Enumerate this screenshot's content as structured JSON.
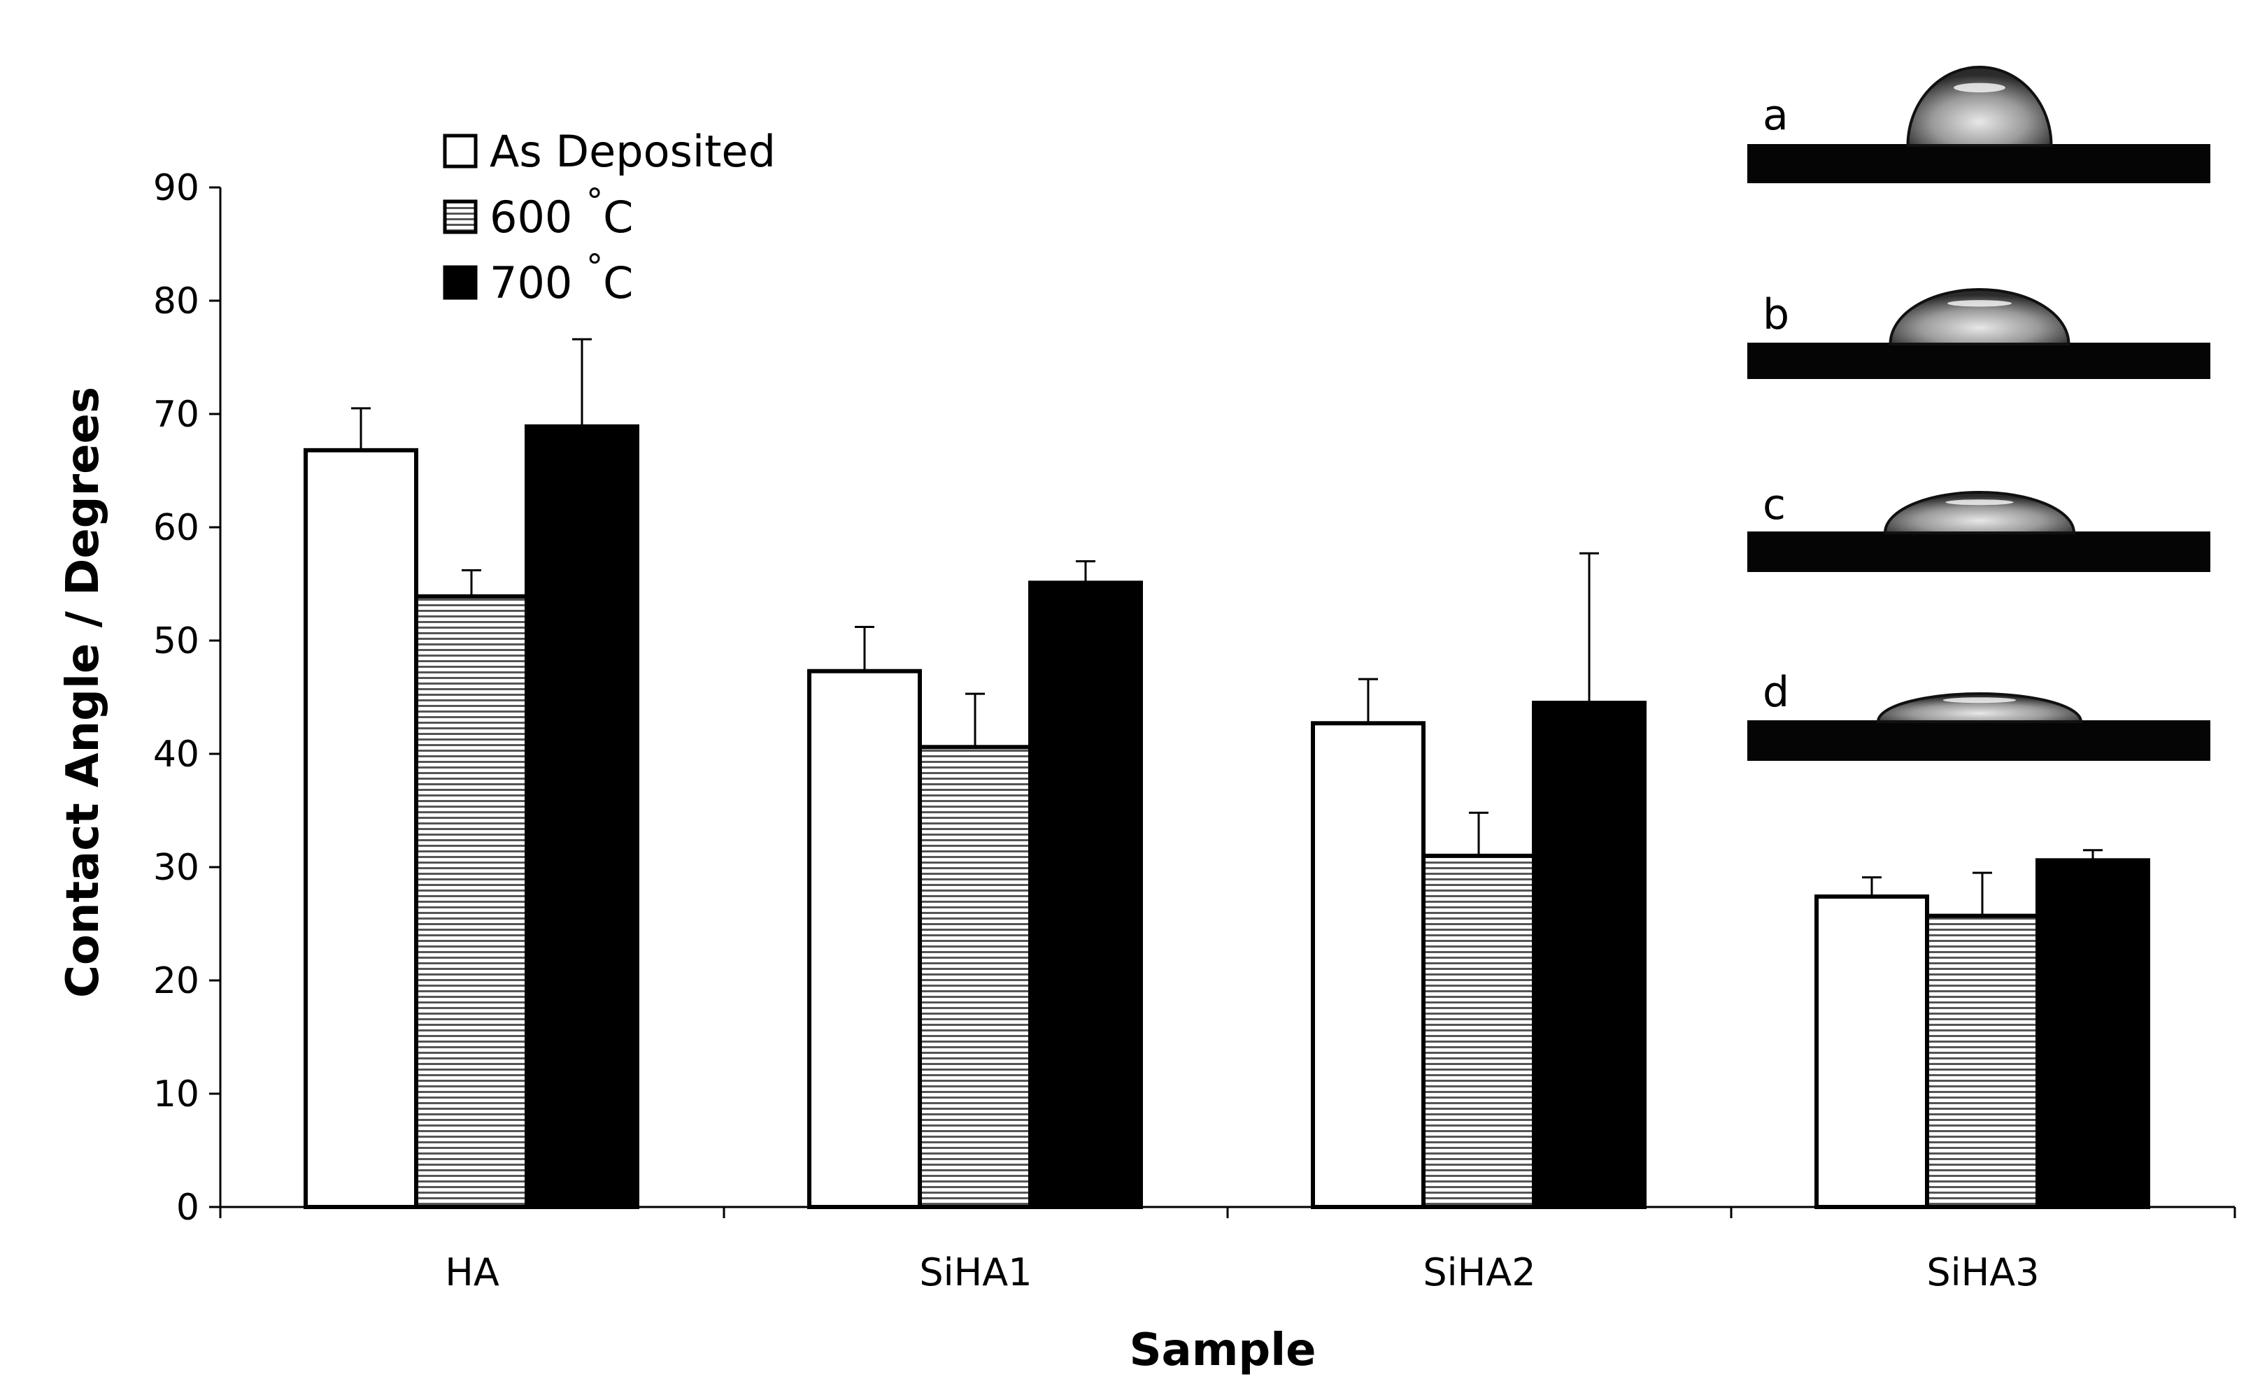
{
  "chart_data": {
    "type": "bar",
    "title": "",
    "xlabel": "Sample",
    "ylabel": "Contact Angle / Degrees",
    "ylim": [
      0,
      90
    ],
    "yticks": [
      0,
      10,
      20,
      30,
      40,
      50,
      60,
      70,
      80,
      90
    ],
    "grid": false,
    "legend_position": "top-left",
    "categories": [
      "HA",
      "SiHA1",
      "SiHA2",
      "SiHA3"
    ],
    "series": [
      {
        "name": "As Deposited",
        "legend_label": "As Deposited",
        "fill": "white",
        "values": [
          66.8,
          47.3,
          42.7,
          27.4
        ],
        "errors": [
          3.7,
          3.9,
          3.9,
          1.7
        ]
      },
      {
        "name": "600 °C",
        "legend_label": "600",
        "legend_unit": "°C",
        "fill": "striped",
        "values": [
          53.9,
          40.6,
          31.0,
          25.7
        ],
        "errors": [
          2.3,
          4.7,
          3.8,
          3.8
        ]
      },
      {
        "name": "700 °C",
        "legend_label": "700",
        "legend_unit": "°C",
        "fill": "black",
        "values": [
          68.9,
          55.1,
          44.5,
          30.6
        ],
        "errors": [
          7.7,
          1.9,
          13.2,
          0.9
        ]
      }
    ],
    "insets": [
      {
        "label": "a",
        "description": "droplet image"
      },
      {
        "label": "b",
        "description": "droplet image"
      },
      {
        "label": "c",
        "description": "droplet image"
      },
      {
        "label": "d",
        "description": "droplet image"
      }
    ]
  }
}
